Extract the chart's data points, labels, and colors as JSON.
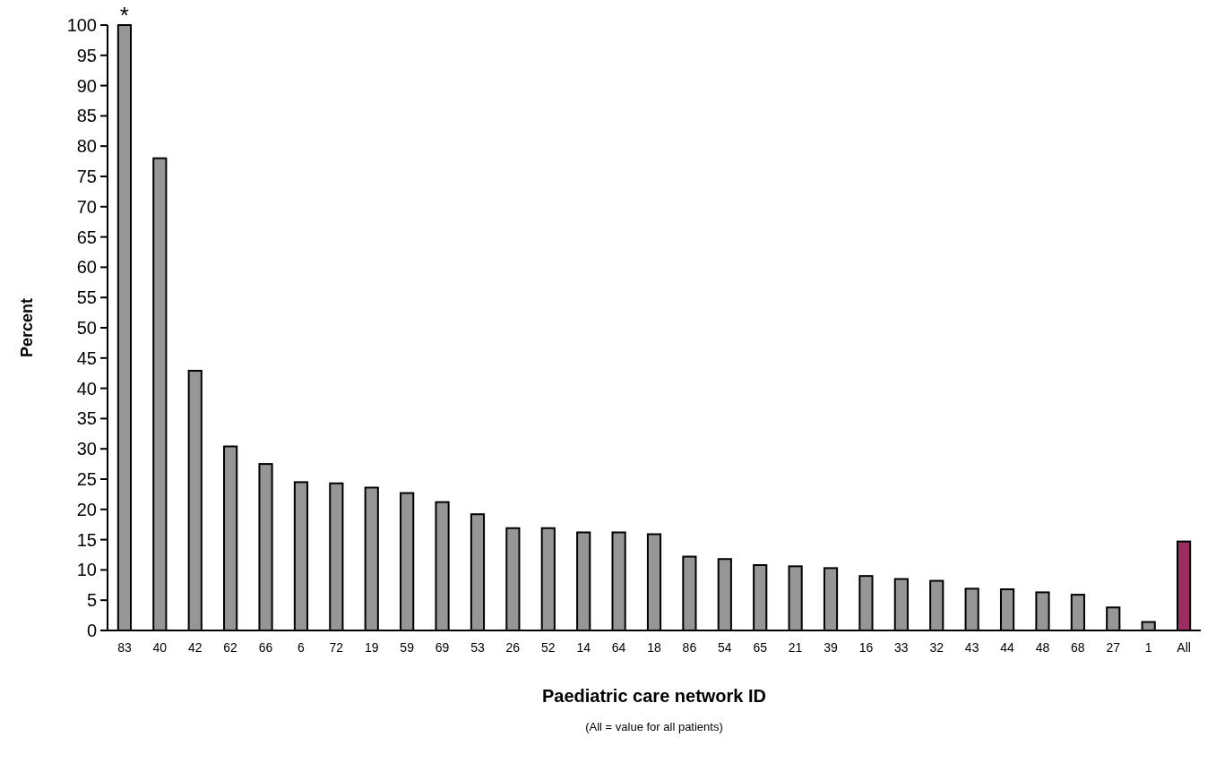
{
  "chart_data": {
    "type": "bar",
    "xlabel": "Paediatric care network ID",
    "ylabel": "Percent",
    "categories": [
      "83",
      "40",
      "42",
      "62",
      "66",
      "6",
      "72",
      "19",
      "59",
      "69",
      "53",
      "26",
      "52",
      "14",
      "64",
      "18",
      "86",
      "54",
      "65",
      "21",
      "39",
      "16",
      "33",
      "32",
      "43",
      "44",
      "48",
      "68",
      "27",
      "1",
      "All"
    ],
    "values": [
      100,
      78,
      42.9,
      30.4,
      27.5,
      24.5,
      24.3,
      23.6,
      22.7,
      21.2,
      19.2,
      16.9,
      16.9,
      16.2,
      16.2,
      15.9,
      12.2,
      11.8,
      10.8,
      10.6,
      10.3,
      9.0,
      8.5,
      8.2,
      6.9,
      6.8,
      6.3,
      5.9,
      3.8,
      1.4,
      14.7
    ],
    "colors": [
      "#969696",
      "#969696",
      "#969696",
      "#969696",
      "#969696",
      "#969696",
      "#969696",
      "#969696",
      "#969696",
      "#969696",
      "#969696",
      "#969696",
      "#969696",
      "#969696",
      "#969696",
      "#969696",
      "#969696",
      "#969696",
      "#969696",
      "#969696",
      "#969696",
      "#969696",
      "#969696",
      "#969696",
      "#969696",
      "#969696",
      "#969696",
      "#969696",
      "#969696",
      "#969696",
      "#9b2d62"
    ],
    "ylim": [
      0,
      100
    ],
    "yticks": [
      0,
      5,
      10,
      15,
      20,
      25,
      30,
      35,
      40,
      45,
      50,
      55,
      60,
      65,
      70,
      75,
      80,
      85,
      90,
      95,
      100
    ],
    "grid": false,
    "annotations": [
      {
        "text": "*",
        "x": "83",
        "y": 100
      },
      "(All = value for all patients)"
    ]
  }
}
